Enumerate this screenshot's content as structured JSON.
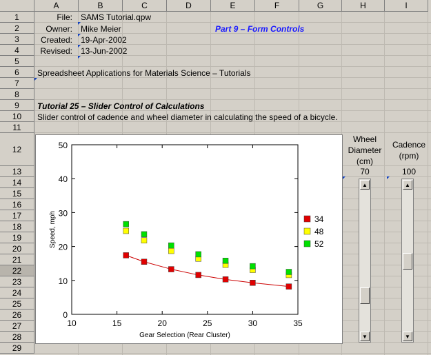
{
  "columns": [
    "A",
    "B",
    "C",
    "D",
    "E",
    "F",
    "G",
    "H",
    "I"
  ],
  "rows": [
    "1",
    "2",
    "3",
    "4",
    "5",
    "6",
    "7",
    "8",
    "9",
    "10",
    "11",
    "12",
    "13",
    "14",
    "15",
    "16",
    "17",
    "18",
    "19",
    "20",
    "21",
    "22",
    "23",
    "24",
    "25",
    "26",
    "27",
    "28",
    "29"
  ],
  "cells": {
    "file_label": "File:",
    "file_value": "SAMS Tutorial.qpw",
    "owner_label": "Owner:",
    "owner_value": "Mike Meier",
    "created_label": "Created:",
    "created_value": "19-Apr-2002",
    "revised_label": "Revised:",
    "revised_value": "13-Jun-2002",
    "part_title": "Part 9 – Form Controls",
    "series_title": "Spreadsheet Applications for Materials Science – Tutorials",
    "tutorial_title": "Tutorial 25 – Slider Control of Calculations",
    "tutorial_desc": "Slider control of cadence and wheel diameter in calculating the speed of a bicycle.",
    "wheel_label_1": "Wheel",
    "wheel_label_2": "Diameter",
    "wheel_label_3": "(cm)",
    "wheel_value": "70",
    "cadence_label_1": "Cadence",
    "cadence_label_2": "(rpm)",
    "cadence_value": "100"
  },
  "sliders": {
    "wheel_level_fraction": 0.77,
    "cadence_level_fraction": 0.5
  },
  "colors": {
    "part_title": "#1a1aff",
    "series_34": "#e00000",
    "series_48": "#ffff00",
    "series_52": "#00e000"
  },
  "chart_data": {
    "type": "scatter",
    "xlabel": "Gear Selection (Rear Cluster)",
    "ylabel": "Speed, mph",
    "xlim": [
      10,
      35
    ],
    "ylim": [
      0,
      50
    ],
    "xticks": [
      "10",
      "15",
      "20",
      "25",
      "30",
      "35"
    ],
    "yticks": [
      "0",
      "10",
      "20",
      "30",
      "40",
      "50"
    ],
    "x": [
      16,
      18,
      21,
      24,
      27,
      30,
      34
    ],
    "series": [
      {
        "name": "34",
        "values": [
          17.4,
          15.5,
          13.3,
          11.6,
          10.3,
          9.3,
          8.2
        ],
        "trendline": true
      },
      {
        "name": "48",
        "values": [
          24.6,
          21.8,
          18.7,
          16.4,
          14.6,
          13.1,
          11.6
        ]
      },
      {
        "name": "52",
        "values": [
          26.6,
          23.6,
          20.3,
          17.7,
          15.8,
          14.2,
          12.5
        ]
      }
    ]
  }
}
